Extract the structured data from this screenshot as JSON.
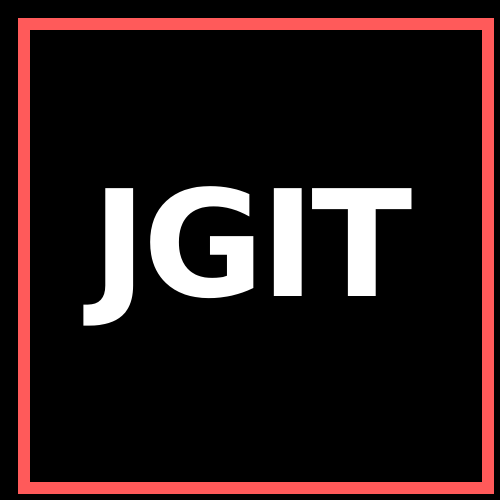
{
  "logo": {
    "text": "JGIT",
    "colors": {
      "background": "#000000",
      "frame": "#ff5a5a",
      "text": "#ffffff"
    }
  }
}
